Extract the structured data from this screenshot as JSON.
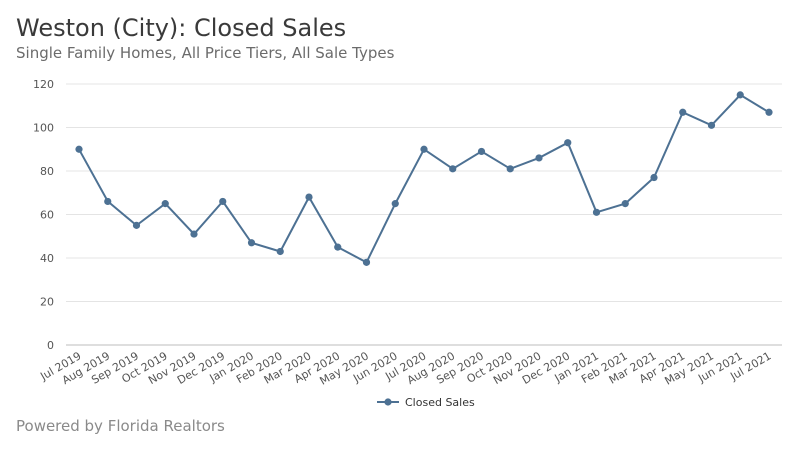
{
  "header": {
    "title": "Weston (City): Closed Sales",
    "subtitle": "Single Family Homes, All Price Tiers, All Sale Types"
  },
  "footer": {
    "text": "Powered by Florida Realtors"
  },
  "chart_data": {
    "type": "line",
    "categories": [
      "Jul 2019",
      "Aug 2019",
      "Sep 2019",
      "Oct 2019",
      "Nov 2019",
      "Dec 2019",
      "Jan 2020",
      "Feb 2020",
      "Mar 2020",
      "Apr 2020",
      "May 2020",
      "Jun 2020",
      "Jul 2020",
      "Aug 2020",
      "Sep 2020",
      "Oct 2020",
      "Nov 2020",
      "Dec 2020",
      "Jan 2021",
      "Feb 2021",
      "Mar 2021",
      "Apr 2021",
      "May 2021",
      "Jun 2021",
      "Jul 2021"
    ],
    "series": [
      {
        "name": "Closed Sales",
        "values": [
          90,
          66,
          55,
          65,
          51,
          66,
          47,
          43,
          68,
          45,
          38,
          65,
          90,
          81,
          89,
          81,
          86,
          93,
          61,
          65,
          77,
          107,
          101,
          115,
          107
        ]
      }
    ],
    "ylim": [
      0,
      120
    ],
    "yticks": [
      0,
      20,
      40,
      60,
      80,
      100,
      120
    ],
    "grid": true,
    "legend_position": "bottom",
    "line_color": "#4d7193"
  }
}
